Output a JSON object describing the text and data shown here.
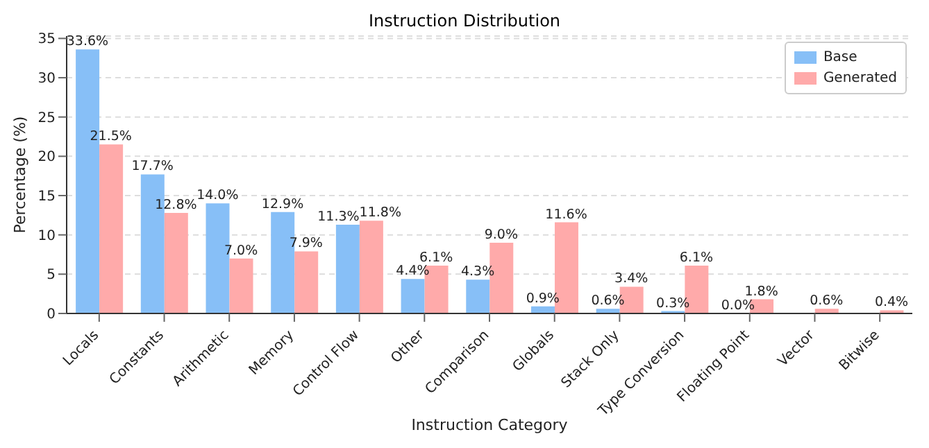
{
  "chart_data": {
    "type": "bar",
    "title": "Instruction Distribution",
    "xlabel": "Instruction Category",
    "ylabel": "Percentage (%)",
    "categories": [
      "Locals",
      "Constants",
      "Arithmetic",
      "Memory",
      "Control Flow",
      "Other",
      "Comparison",
      "Globals",
      "Stack Only",
      "Type Conversion",
      "Floating Point",
      "Vector",
      "Bitwise"
    ],
    "series": [
      {
        "name": "Base",
        "color": "#87bff7",
        "values": [
          33.6,
          17.7,
          14.0,
          12.9,
          11.3,
          4.4,
          4.3,
          0.9,
          0.6,
          0.3,
          0.0,
          null,
          null
        ],
        "value_labels": [
          "33.6%",
          "17.7%",
          "14.0%",
          "12.9%",
          "11.3%",
          "4.4%",
          "4.3%",
          "0.9%",
          "0.6%",
          "0.3%",
          "0.0%",
          null,
          null
        ]
      },
      {
        "name": "Generated",
        "color": "#ffaaaa",
        "values": [
          21.5,
          12.8,
          7.0,
          7.9,
          11.8,
          6.1,
          9.0,
          11.6,
          3.4,
          6.1,
          1.8,
          0.6,
          0.4
        ],
        "value_labels": [
          "21.5%",
          "12.8%",
          "7.0%",
          "7.9%",
          "11.8%",
          "6.1%",
          "9.0%",
          "11.6%",
          "3.4%",
          "6.1%",
          "1.8%",
          "0.6%",
          "0.4%"
        ]
      }
    ],
    "ylim": [
      0,
      35.3
    ],
    "yticks": [
      0,
      5,
      10,
      15,
      20,
      25,
      30,
      35
    ],
    "grid": "y",
    "legend": "top right"
  }
}
